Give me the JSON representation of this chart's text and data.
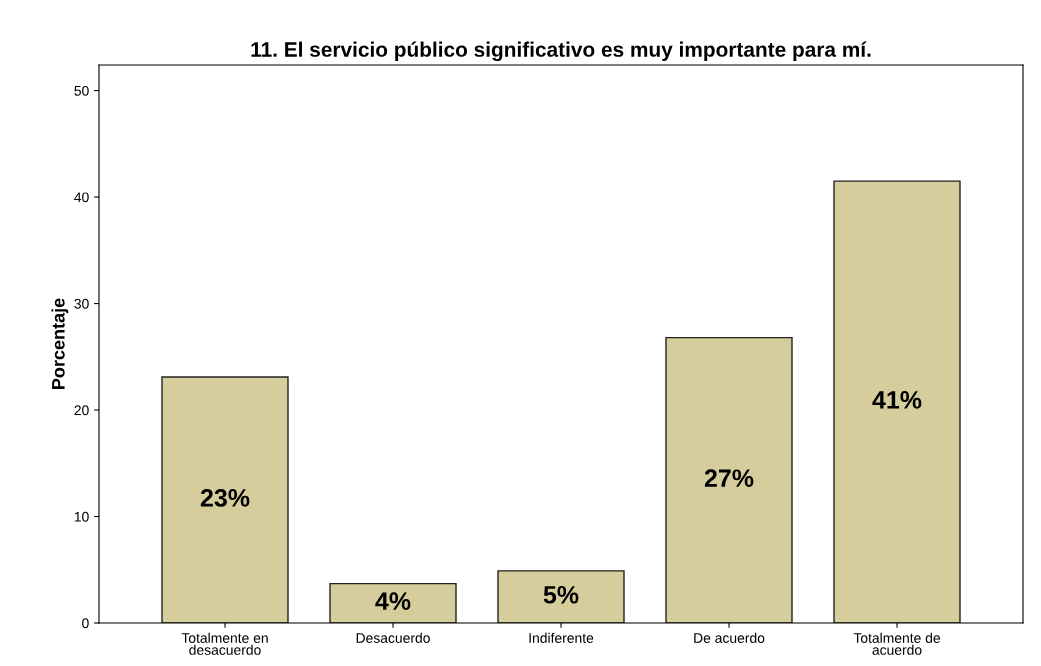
{
  "chart_data": {
    "type": "bar",
    "title": "11. El servicio público significativo es muy importante para mí.",
    "ylabel": "Porcentaje",
    "categories": [
      "Totalmente en\ndesacuerdo",
      "Desacuerdo",
      "Indiferente",
      "De acuerdo",
      "Totalmente de\nacuerdo"
    ],
    "values": [
      23.1,
      3.7,
      4.9,
      26.8,
      41.5
    ],
    "value_labels": [
      "23%",
      "4%",
      "5%",
      "27%",
      "41%"
    ],
    "color": "#d5cd9b",
    "ylim": [
      0,
      52.4
    ],
    "yticks": [
      0,
      10,
      20,
      30,
      40,
      50
    ],
    "grid": false,
    "legend": false
  }
}
